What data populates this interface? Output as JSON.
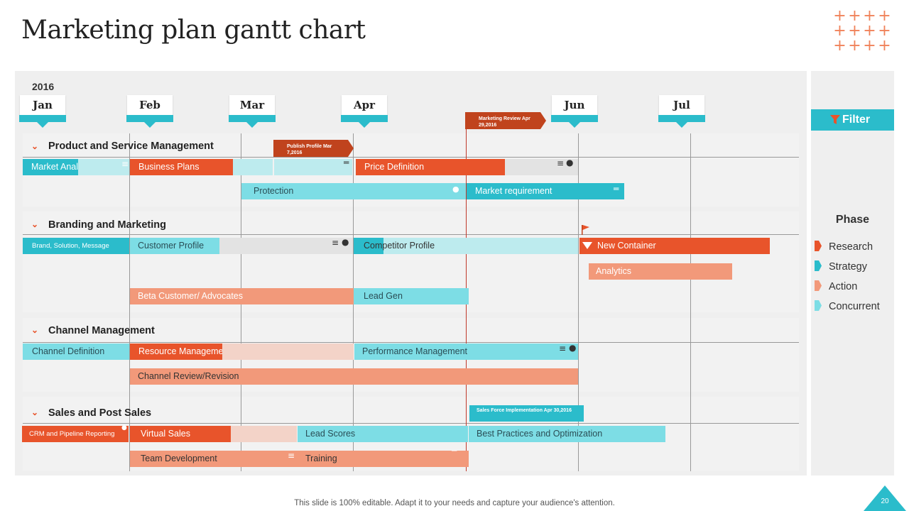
{
  "slide": {
    "title": "Marketing plan gantt chart",
    "footer": "This slide is 100% editable. Adapt it to your needs and capture your audience's attention.",
    "page_number": "20"
  },
  "colors": {
    "research": "#e8542b",
    "strategy": "#2bbccb",
    "action": "#f2997a",
    "concurrent": "#7ddde5",
    "review_line": "#c0392b"
  },
  "sidepanel": {
    "filter_label": "Filter",
    "phase_title": "Phase",
    "legend": [
      "Research",
      "Strategy",
      "Action",
      "Concurrent"
    ]
  },
  "chart_data": {
    "type": "gantt",
    "year": "2016",
    "months": [
      "Jan",
      "Feb",
      "Mar",
      "Apr",
      "Jun",
      "Jul"
    ],
    "milestones": [
      {
        "label": "Marketing Review Apr 29,2016",
        "date": "2016-04-29"
      },
      {
        "label": "Publish Profile Mar 7,2016",
        "date": "2016-03-07"
      },
      {
        "label": "Sales Force Implementation Apr 30,2016",
        "date": "2016-04-30"
      }
    ],
    "sections": [
      {
        "name": "Product and Service Management",
        "tasks": [
          "Market Analysis",
          "Business Plans",
          "Price Definition",
          "Protection",
          "Market requirement"
        ]
      },
      {
        "name": "Branding and Marketing",
        "tasks": [
          "Brand, Solution, Message",
          "Customer Profile",
          "Competitor Profile",
          "New Container",
          "Analytics",
          "Beta Customer/ Advocates",
          "Lead Gen"
        ]
      },
      {
        "name": "Channel Management",
        "tasks": [
          "Channel Definition",
          "Resource Management",
          "Performance Management",
          "Channel Review/Revision"
        ]
      },
      {
        "name": "Sales and Post Sales",
        "tasks": [
          "CRM and Pipeline Reporting",
          "Virtual Sales",
          "Lead Scores",
          "Best Practices and Optimization",
          "Team Development",
          "Training"
        ]
      }
    ]
  }
}
